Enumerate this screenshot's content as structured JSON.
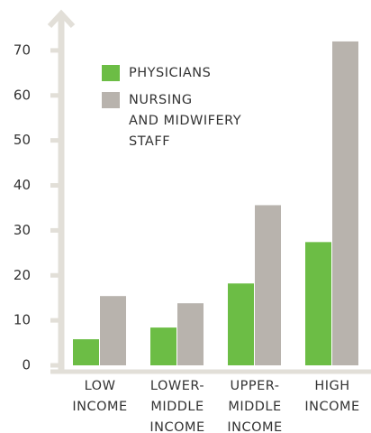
{
  "chart_data": {
    "type": "bar",
    "categories": [
      "LOW\nINCOME",
      "LOWER-\nMIDDLE\nINCOME",
      "UPPER-\nMIDDLE\nINCOME",
      "HIGH\nINCOME"
    ],
    "series": [
      {
        "name": "PHYSICIANS",
        "color": "#6cbd45",
        "values": [
          5.8,
          8.4,
          18.2,
          27.4
        ]
      },
      {
        "name": "NURSING\nAND MIDWIFERY\nSTAFF",
        "color": "#b8b3ad",
        "values": [
          15.4,
          13.8,
          35.6,
          72
        ]
      }
    ],
    "ylim": [
      0,
      78
    ],
    "yticks": [
      0,
      10,
      20,
      30,
      40,
      50,
      60,
      70
    ]
  }
}
